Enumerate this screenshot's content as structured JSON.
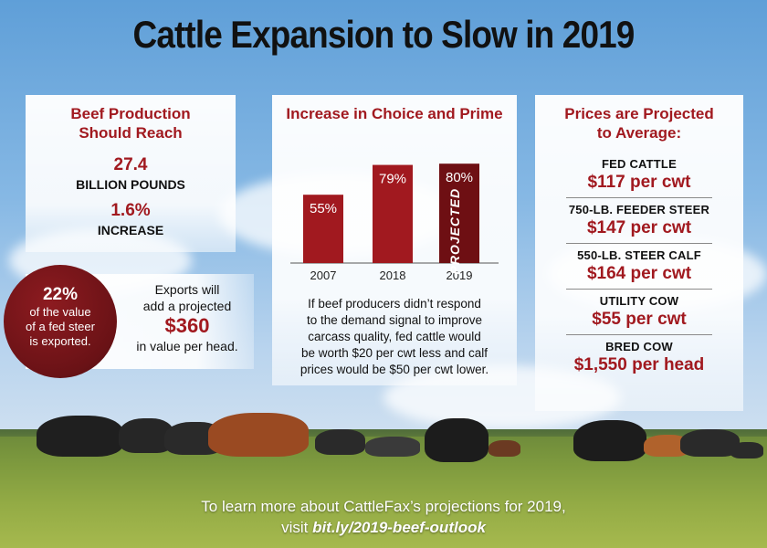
{
  "title": "Cattle Expansion to Slow in 2019",
  "production": {
    "heading_line1": "Beef Production",
    "heading_line2": "Should Reach",
    "amount": "27.4",
    "amount_unit": "BILLION POUNDS",
    "change": "1.6%",
    "change_label": "INCREASE"
  },
  "exports": {
    "circle_pct": "22%",
    "circle_line1": "of the value",
    "circle_line2": "of a fed steer",
    "circle_line3": "is exported.",
    "text_line1": "Exports will",
    "text_line2": "add a projected",
    "value": "$360",
    "text_line3": "in value per head."
  },
  "chart_data": {
    "type": "bar",
    "title": "Increase in Choice and Prime",
    "categories": [
      "2007",
      "2018",
      "2019"
    ],
    "values": [
      55,
      79,
      80
    ],
    "value_labels": [
      "55%",
      "79%",
      "80%"
    ],
    "bar_annotation": "PROJECTED",
    "ylim": [
      0,
      100
    ],
    "colors": {
      "bar": "#a1191f",
      "bar_dark": "#6e0f13"
    },
    "grid": false,
    "note_lines": [
      "If beef producers didn’t respond",
      "to the demand signal to improve",
      "carcass quality, fed cattle would",
      "be worth $20 per cwt less and calf",
      "prices would be $50 per cwt lower."
    ]
  },
  "prices": {
    "heading_line1": "Prices are Projected",
    "heading_line2": "to Average:",
    "items": [
      {
        "label": "FED CATTLE",
        "value": "$117 per cwt"
      },
      {
        "label": "750-LB. FEEDER STEER",
        "value": "$147 per cwt"
      },
      {
        "label": "550-LB. STEER CALF",
        "value": "$164 per cwt"
      },
      {
        "label": "UTILITY COW",
        "value": "$55 per cwt"
      },
      {
        "label": "BRED COW",
        "value": "$1,550 per head"
      }
    ]
  },
  "footer": {
    "line1": "To learn more about CattleFax’s projections for 2019,",
    "line2_prefix": "visit ",
    "link": "bit.ly/2019-beef-outlook"
  },
  "colors": {
    "accent": "#a1191f"
  }
}
